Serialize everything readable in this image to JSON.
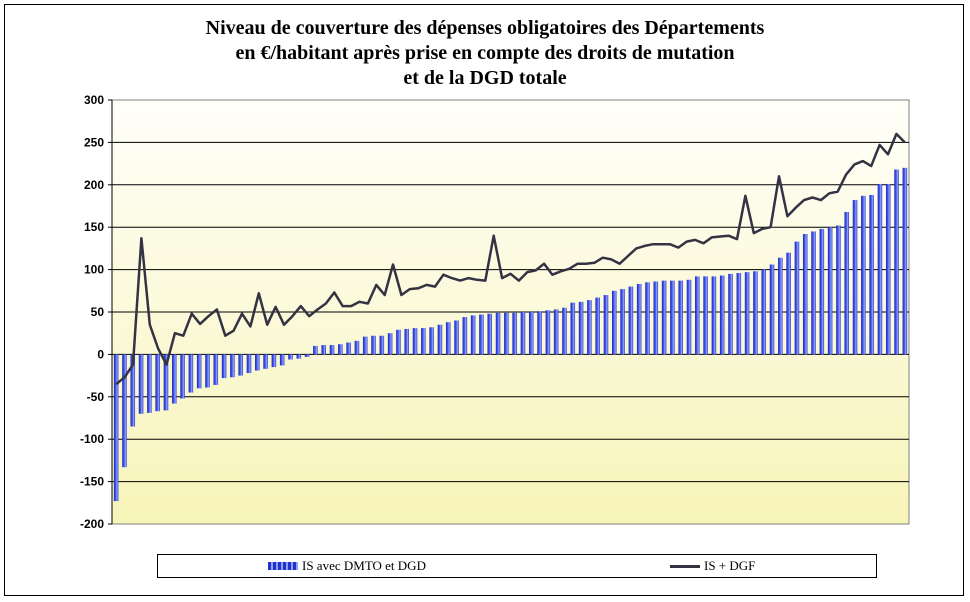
{
  "title_lines": [
    "Niveau de couverture des dépenses obligatoires des Départements",
    "en €/habitant après prise en compte des droits de mutation",
    "et de la DGD totale"
  ],
  "legend": {
    "bars_label": "IS avec DMTO et DGD",
    "line_label": "IS + DGF"
  },
  "colors": {
    "plot_background_top": "#fffffa",
    "plot_background_bottom": "#f7f4b8",
    "bar": "#2233cc",
    "bar_highlight": "#8fa0ff",
    "line": "#333344",
    "gridline": "#000000"
  },
  "chart_data": {
    "type": "bar+line",
    "title": "Niveau de couverture des dépenses obligatoires des Départements en €/habitant après prise en compte des droits de mutation et de la DGD totale",
    "xlabel": "",
    "ylabel": "",
    "ylim": [
      -200,
      300
    ],
    "yticks": [
      -200,
      -150,
      -100,
      -50,
      0,
      50,
      100,
      150,
      200,
      250,
      300
    ],
    "grid": true,
    "legend_position": "bottom",
    "series": [
      {
        "name": "IS avec DMTO et DGD",
        "kind": "bar",
        "values": [
          -173,
          -133,
          -85,
          -70,
          -69,
          -67,
          -66,
          -58,
          -52,
          -45,
          -40,
          -39,
          -36,
          -28,
          -27,
          -25,
          -22,
          -19,
          -17,
          -15,
          -13,
          -6,
          -5,
          -3,
          10,
          11,
          11,
          12,
          14,
          16,
          21,
          22,
          22,
          25,
          29,
          30,
          31,
          31,
          32,
          35,
          38,
          40,
          44,
          46,
          47,
          48,
          49,
          49,
          49,
          50,
          50,
          51,
          52,
          53,
          55,
          61,
          62,
          64,
          67,
          70,
          75,
          77,
          80,
          83,
          85,
          86,
          87,
          87,
          87,
          88,
          92,
          92,
          92,
          93,
          95,
          96,
          97,
          98,
          100,
          106,
          114,
          120,
          133,
          142,
          145,
          148,
          150,
          152,
          168,
          182,
          187,
          188,
          201,
          201,
          218,
          220
        ]
      },
      {
        "name": "IS + DGF",
        "kind": "line",
        "values": [
          -35,
          -27,
          -12,
          137,
          35,
          7,
          -12,
          25,
          22,
          48,
          36,
          45,
          53,
          22,
          28,
          48,
          33,
          72,
          35,
          56,
          35,
          45,
          57,
          45,
          53,
          60,
          73,
          57,
          57,
          62,
          60,
          82,
          70,
          106,
          70,
          77,
          78,
          82,
          80,
          94,
          90,
          87,
          90,
          88,
          87,
          140,
          90,
          95,
          87,
          97,
          99,
          107,
          94,
          98,
          101,
          107,
          107,
          108,
          114,
          112,
          107,
          116,
          125,
          128,
          130,
          130,
          130,
          126,
          133,
          135,
          131,
          138,
          139,
          140,
          136,
          187,
          143,
          148,
          150,
          210,
          163,
          173,
          182,
          185,
          182,
          190,
          192,
          212,
          224,
          228,
          222,
          247,
          236,
          260,
          250
        ]
      }
    ]
  }
}
